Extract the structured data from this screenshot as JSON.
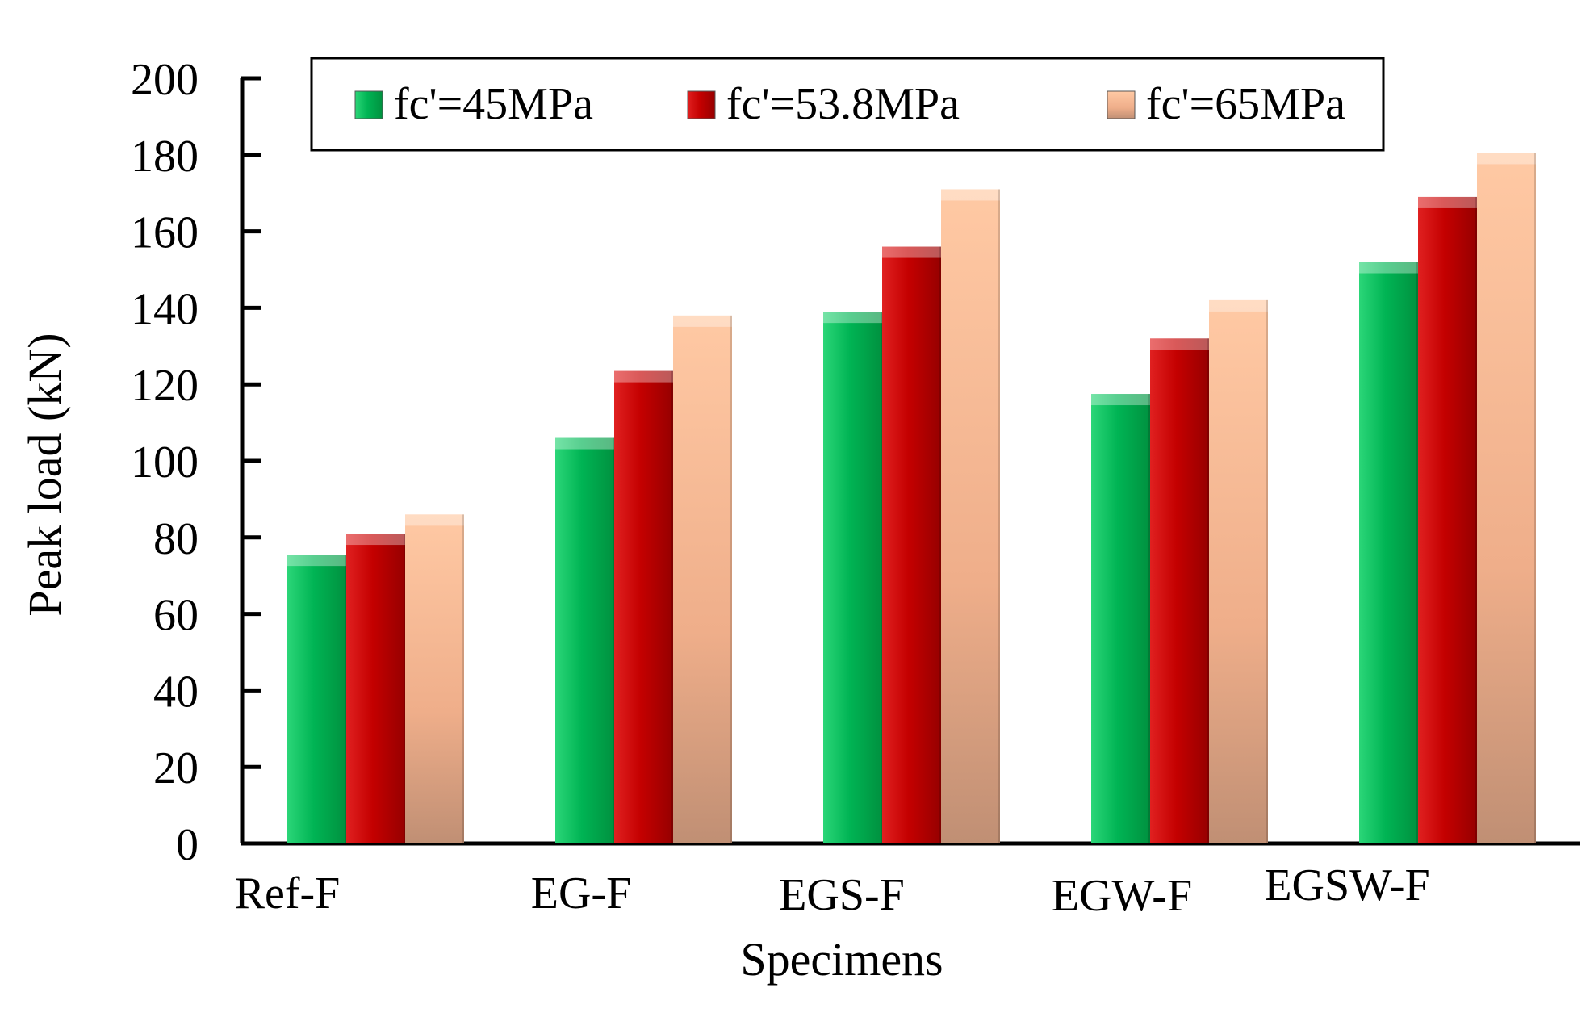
{
  "chart_data": {
    "type": "bar",
    "title": "",
    "xlabel": "Specimens",
    "ylabel": "Peak load (kN)",
    "ylim": [
      0,
      200
    ],
    "yticks": [
      0,
      20,
      40,
      60,
      80,
      100,
      120,
      140,
      160,
      180,
      200
    ],
    "grid": false,
    "legend_position": "top",
    "categories": [
      "Ref-F",
      "EG-F",
      "EGS-F",
      "EGW-F",
      "EGSW-F"
    ],
    "series": [
      {
        "name": "fc'=45MPa",
        "color": "#00b050",
        "values": [
          75.5,
          106,
          139,
          117.5,
          152
        ]
      },
      {
        "name": "fc'=53.8MPa",
        "color": "#c00000",
        "values": [
          81,
          123.5,
          156,
          132,
          169
        ]
      },
      {
        "name": "fc'=65MPa",
        "color": "#f0b08a",
        "values": [
          86,
          138,
          171,
          142,
          180.5
        ]
      }
    ]
  }
}
